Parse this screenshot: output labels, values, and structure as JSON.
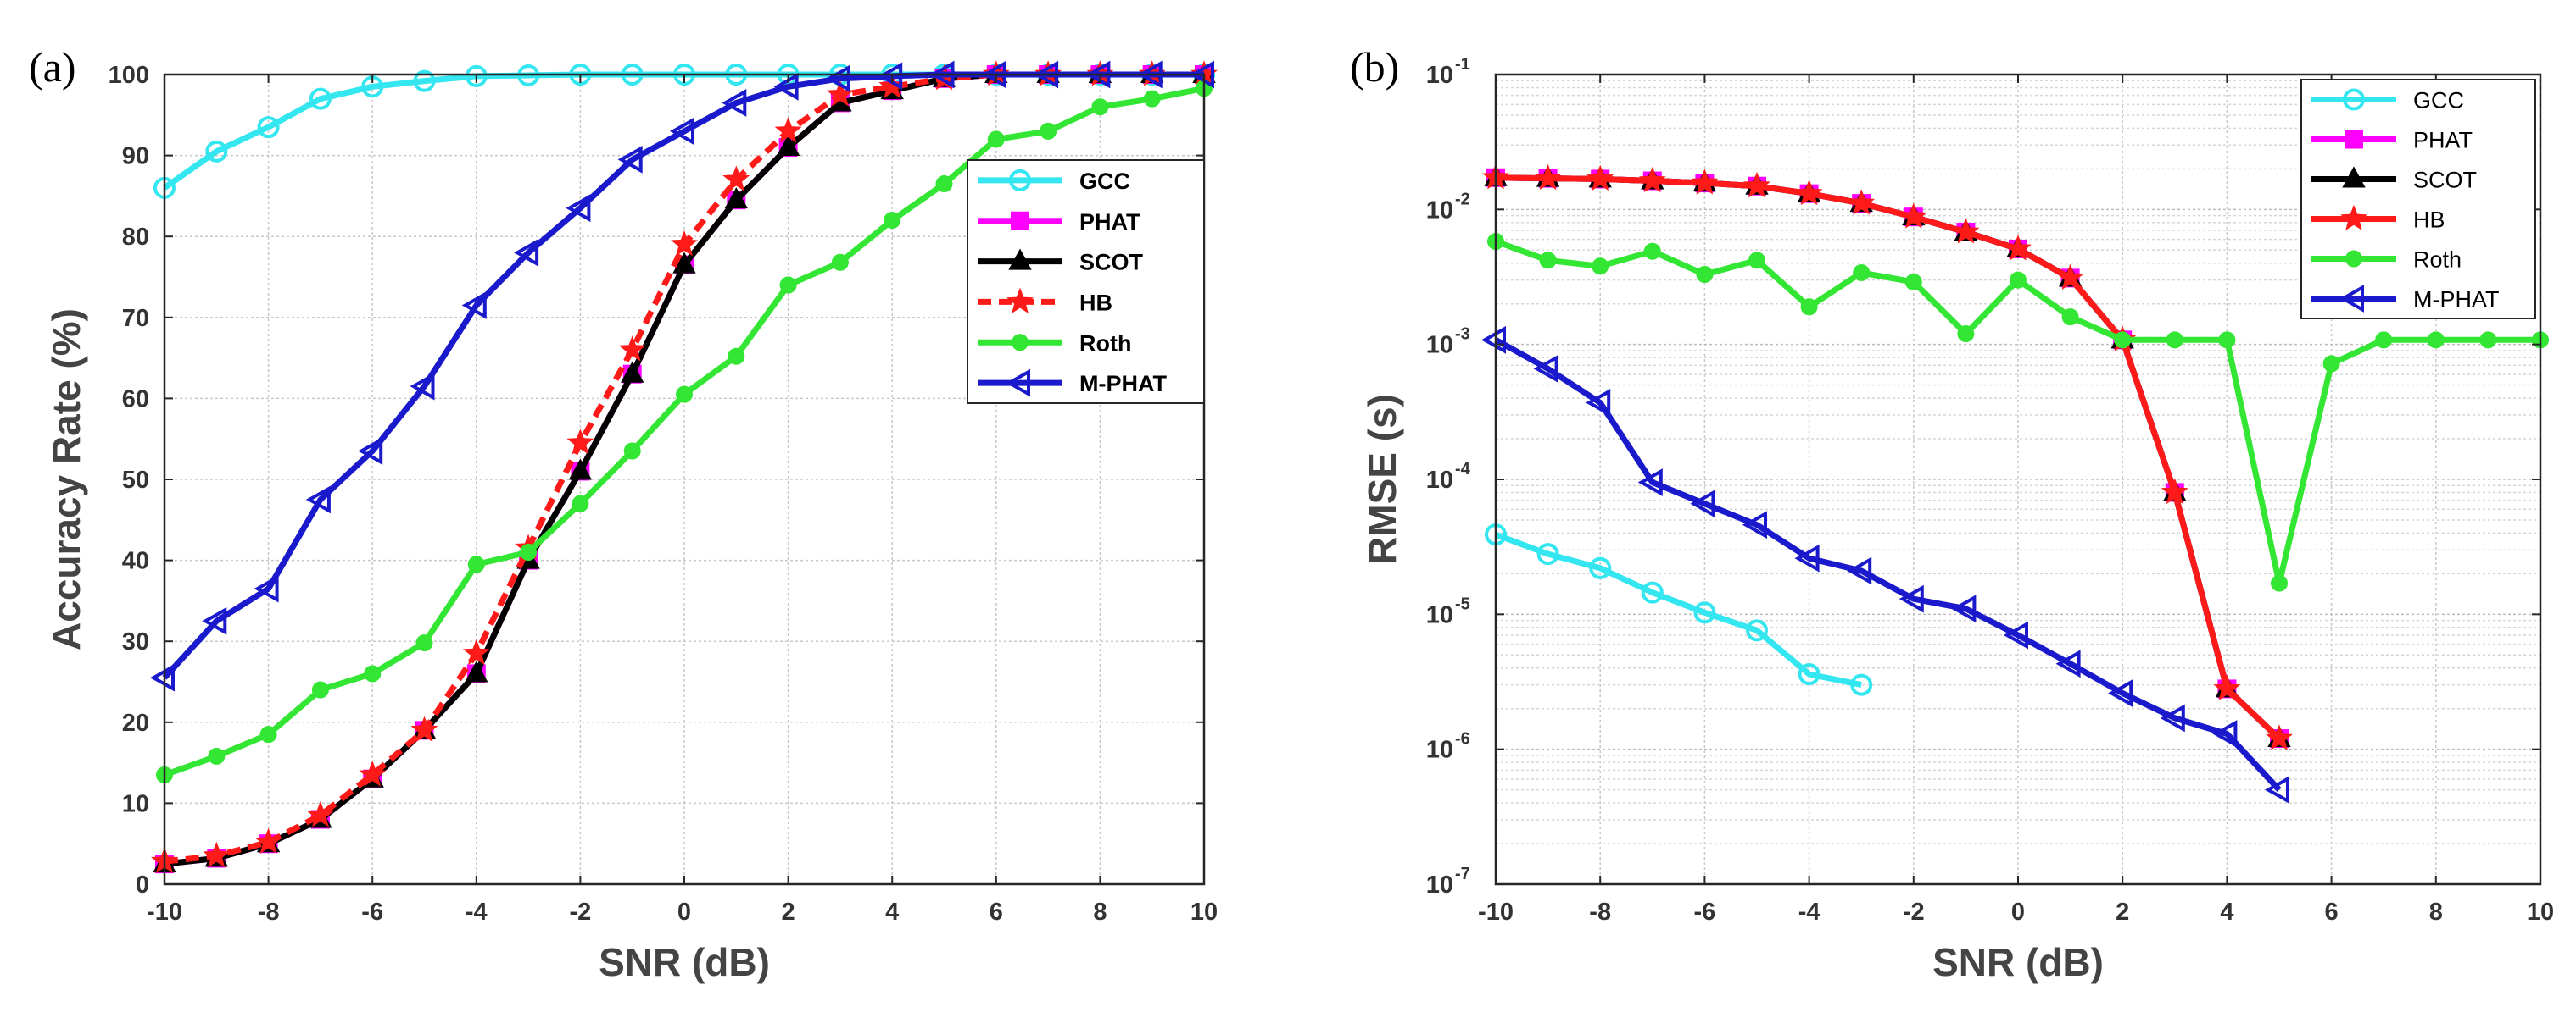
{
  "chart_data": [
    {
      "type": "line",
      "panel_label": "(a)",
      "xlabel": "SNR (dB)",
      "ylabel": "Accuracy Rate (%)",
      "xlim": [
        -10,
        10
      ],
      "ylim": [
        0,
        100
      ],
      "xticks": [
        "-10",
        "-8",
        "-6",
        "-4",
        "-2",
        "0",
        "2",
        "4",
        "6",
        "8",
        "10"
      ],
      "yticks": [
        "0",
        "10",
        "20",
        "30",
        "40",
        "50",
        "60",
        "70",
        "80",
        "90",
        "100"
      ],
      "grid": true,
      "legend_position": "right",
      "x": [
        -10,
        -9,
        -8,
        -7,
        -6,
        -5,
        -4,
        -3,
        -2,
        -1,
        0,
        1,
        2,
        3,
        4,
        5,
        6,
        7,
        8,
        9,
        10
      ],
      "series": [
        {
          "name": "GCC",
          "color": "#33e6f0",
          "marker": "circle",
          "dash": "solid",
          "values": [
            86,
            90.5,
            93.5,
            97,
            98.5,
            99.2,
            99.8,
            99.9,
            100,
            100,
            100,
            100,
            100,
            100,
            100,
            100,
            100,
            100,
            100,
            100,
            100
          ]
        },
        {
          "name": "PHAT",
          "color": "#ff00ff",
          "marker": "square",
          "dash": "solid",
          "values": [
            2.5,
            3.2,
            5,
            8,
            13,
            19,
            26,
            40,
            51,
            63,
            76.5,
            84.5,
            91,
            96.5,
            98,
            99.5,
            100,
            100,
            100,
            100,
            100
          ]
        },
        {
          "name": "SCOT",
          "color": "#000000",
          "marker": "triangle-up",
          "dash": "solid",
          "values": [
            2.5,
            3.2,
            5,
            8,
            13,
            19,
            26,
            40,
            51,
            63,
            76.5,
            84.5,
            91,
            96.5,
            98,
            99.5,
            100,
            100,
            100,
            100,
            100
          ]
        },
        {
          "name": "HB",
          "color": "#ff1a1a",
          "marker": "star",
          "dash": "dashed",
          "values": [
            2.8,
            3.5,
            5.2,
            8.5,
            13.5,
            19,
            28.5,
            41.5,
            54.5,
            66,
            79,
            87,
            93,
            97.5,
            98.5,
            99.5,
            100,
            100,
            100,
            100,
            100
          ]
        },
        {
          "name": "Roth",
          "color": "#33e633",
          "marker": "dot",
          "dash": "solid",
          "values": [
            13.5,
            15.8,
            18.5,
            24,
            26,
            29.8,
            39.5,
            41,
            47,
            53.5,
            60.5,
            65.2,
            74,
            76.8,
            82,
            86.5,
            92,
            93,
            96,
            97,
            98.3
          ]
        },
        {
          "name": "M-PHAT",
          "color": "#1a1acc",
          "marker": "triangle-left",
          "dash": "solid",
          "values": [
            25.5,
            32.5,
            36.5,
            47.5,
            53.5,
            61.5,
            71.5,
            78,
            83.5,
            89.5,
            93,
            96.5,
            98.5,
            99.5,
            99.8,
            100,
            100,
            100,
            100,
            100,
            100
          ]
        }
      ]
    },
    {
      "type": "line",
      "panel_label": "(b)",
      "xlabel": "SNR (dB)",
      "ylabel": "RMSE (s)",
      "xlim": [
        -10,
        10
      ],
      "ylim": [
        1e-07,
        0.1
      ],
      "yscale": "log",
      "xticks": [
        "-10",
        "-8",
        "-6",
        "-4",
        "-2",
        "0",
        "2",
        "4",
        "6",
        "8",
        "10"
      ],
      "ytick_exponents": [
        "-7",
        "-6",
        "-5",
        "-4",
        "-3",
        "-2",
        "-1"
      ],
      "ytick_base": "10",
      "grid": true,
      "legend_position": "top-right",
      "series": [
        {
          "name": "GCC",
          "color": "#33e6f0",
          "marker": "circle",
          "dash": "solid",
          "x": [
            -10,
            -9,
            -8,
            -7,
            -6,
            -5,
            -4,
            -3
          ],
          "values": [
            3.9e-05,
            2.8e-05,
            2.2e-05,
            1.45e-05,
            1.03e-05,
            7.6e-06,
            3.6e-06,
            3e-06
          ]
        },
        {
          "name": "PHAT",
          "color": "#ff00ff",
          "marker": "square",
          "dash": "solid",
          "x": [
            -10,
            -9,
            -8,
            -7,
            -6,
            -5,
            -4,
            -3,
            -2,
            -1,
            0,
            1,
            2,
            3,
            4,
            5
          ],
          "values": [
            0.0172,
            0.017,
            0.0168,
            0.0163,
            0.0157,
            0.0149,
            0.0131,
            0.0111,
            0.0088,
            0.0068,
            0.0051,
            0.0031,
            0.00108,
            8e-05,
            2.8e-06,
            1.2e-06
          ]
        },
        {
          "name": "SCOT",
          "color": "#000000",
          "marker": "triangle-up",
          "dash": "solid",
          "x": [
            -10,
            -9,
            -8,
            -7,
            -6,
            -5,
            -4,
            -3,
            -2,
            -1,
            0,
            1,
            2,
            3,
            4,
            5
          ],
          "values": [
            0.0172,
            0.017,
            0.0168,
            0.0163,
            0.0157,
            0.0149,
            0.0131,
            0.0111,
            0.0088,
            0.0068,
            0.0051,
            0.0031,
            0.00108,
            8e-05,
            2.8e-06,
            1.2e-06
          ]
        },
        {
          "name": "HB",
          "color": "#ff1a1a",
          "marker": "star",
          "dash": "solid",
          "x": [
            -10,
            -9,
            -8,
            -7,
            -6,
            -5,
            -4,
            -3,
            -2,
            -1,
            0,
            1,
            2,
            3,
            4,
            5
          ],
          "values": [
            0.0172,
            0.017,
            0.0168,
            0.0163,
            0.0157,
            0.0149,
            0.0131,
            0.0111,
            0.0088,
            0.0068,
            0.0051,
            0.0031,
            0.00108,
            8e-05,
            2.8e-06,
            1.2e-06
          ]
        },
        {
          "name": "Roth",
          "color": "#33e633",
          "marker": "dot",
          "dash": "solid",
          "x": [
            -10,
            -9,
            -8,
            -7,
            -6,
            -5,
            -4,
            -3,
            -2,
            -1,
            0,
            1,
            2,
            3,
            4,
            5,
            6,
            7,
            8,
            9,
            10
          ],
          "values": [
            0.0058,
            0.0042,
            0.0038,
            0.0049,
            0.0033,
            0.0042,
            0.0019,
            0.0034,
            0.0029,
            0.0012,
            0.003,
            0.0016,
            0.00108,
            0.00108,
            0.00108,
            1.7e-05,
            0.00072,
            0.00108,
            0.00108,
            0.00108,
            0.00108
          ]
        },
        {
          "name": "M-PHAT",
          "color": "#1a1acc",
          "marker": "triangle-left",
          "dash": "solid",
          "x": [
            -10,
            -9,
            -8,
            -7,
            -6,
            -5,
            -4,
            -3,
            -2,
            -1,
            0,
            1,
            2,
            3,
            4,
            5
          ],
          "values": [
            0.00108,
            0.00066,
            0.00037,
            9.5e-05,
            6.6e-05,
            4.6e-05,
            2.6e-05,
            2.1e-05,
            1.3e-05,
            1.1e-05,
            7e-06,
            4.3e-06,
            2.6e-06,
            1.7e-06,
            1.3e-06,
            5e-07
          ]
        }
      ]
    }
  ]
}
